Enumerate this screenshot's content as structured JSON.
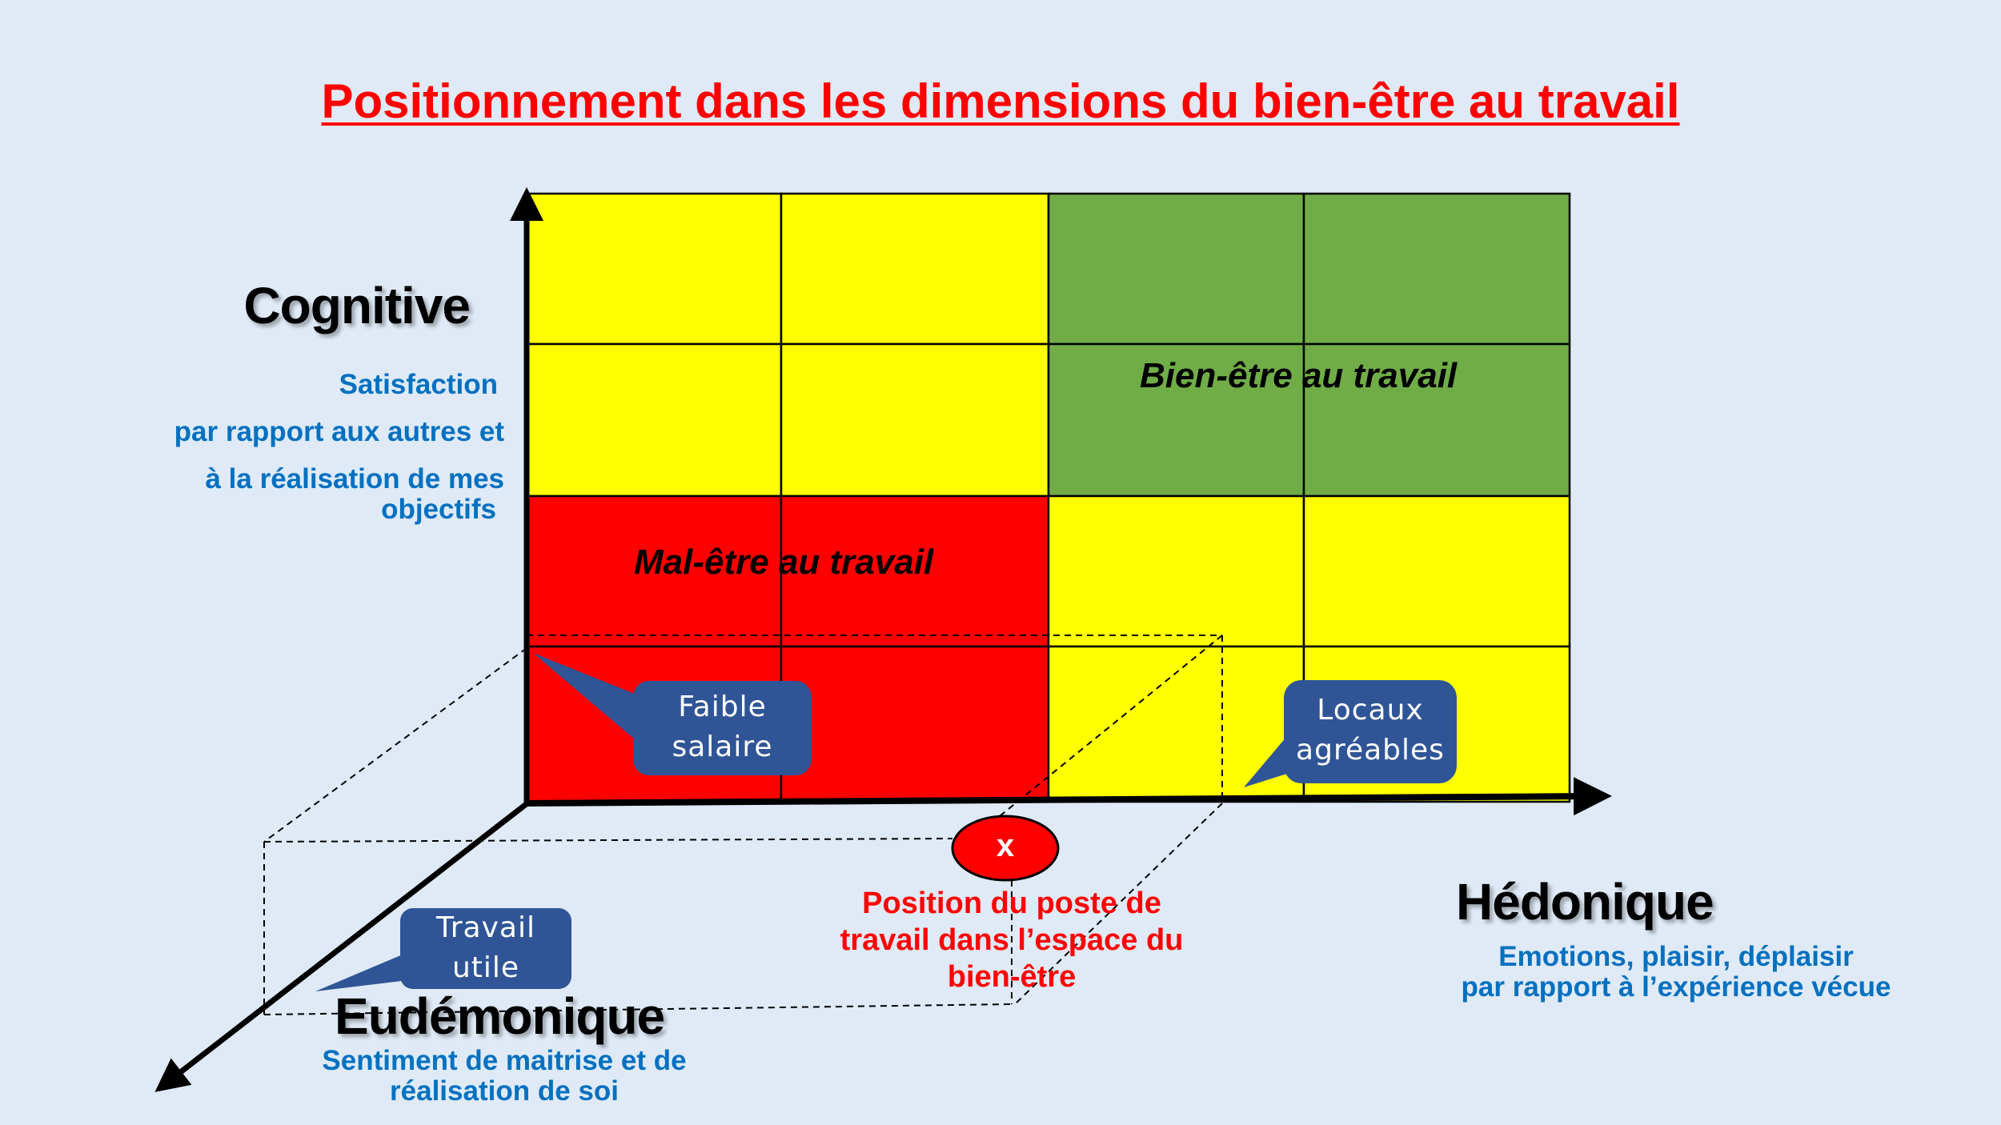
{
  "title": "Positionnement dans les dimensions du bien-être au travail",
  "colors": {
    "background": "#dfeaf6",
    "zone_yellow": "#ffff00",
    "zone_green": "#70ad47",
    "zone_red": "#ff0000",
    "bubble": "#2f5597",
    "description_text": "#0070c0",
    "title": "#ff0000"
  },
  "axes": {
    "cognitive": {
      "name": "Cognitive",
      "description": [
        "Satisfaction",
        "par rapport aux autres et",
        "à la réalisation de mes",
        "objectifs"
      ]
    },
    "hedonique": {
      "name": "Hédonique",
      "description": [
        "Emotions, plaisir, déplaisir",
        "par rapport à l’expérience vécue"
      ]
    },
    "eudemonique": {
      "name": "Eudémonique",
      "description": [
        "Sentiment de maitrise et de",
        "réalisation de soi"
      ]
    }
  },
  "grid": {
    "rows_top_to_bottom": [
      [
        "yellow",
        "yellow",
        "green",
        "green"
      ],
      [
        "yellow",
        "yellow",
        "green",
        "green"
      ],
      [
        "red",
        "red",
        "yellow",
        "yellow"
      ],
      [
        "red",
        "red",
        "yellow",
        "yellow"
      ]
    ]
  },
  "zones": {
    "bien_etre": "Bien-être au travail",
    "mal_etre": "Mal-être au travail"
  },
  "callouts": {
    "faible_salaire": [
      "Faible",
      "salaire"
    ],
    "locaux": [
      "Locaux",
      "agréables"
    ],
    "travail_utile": [
      "Travail",
      "utile"
    ]
  },
  "position_marker": {
    "symbol": "x",
    "label": [
      "Position du poste de",
      "travail dans l’espace du",
      "bien-être"
    ]
  }
}
